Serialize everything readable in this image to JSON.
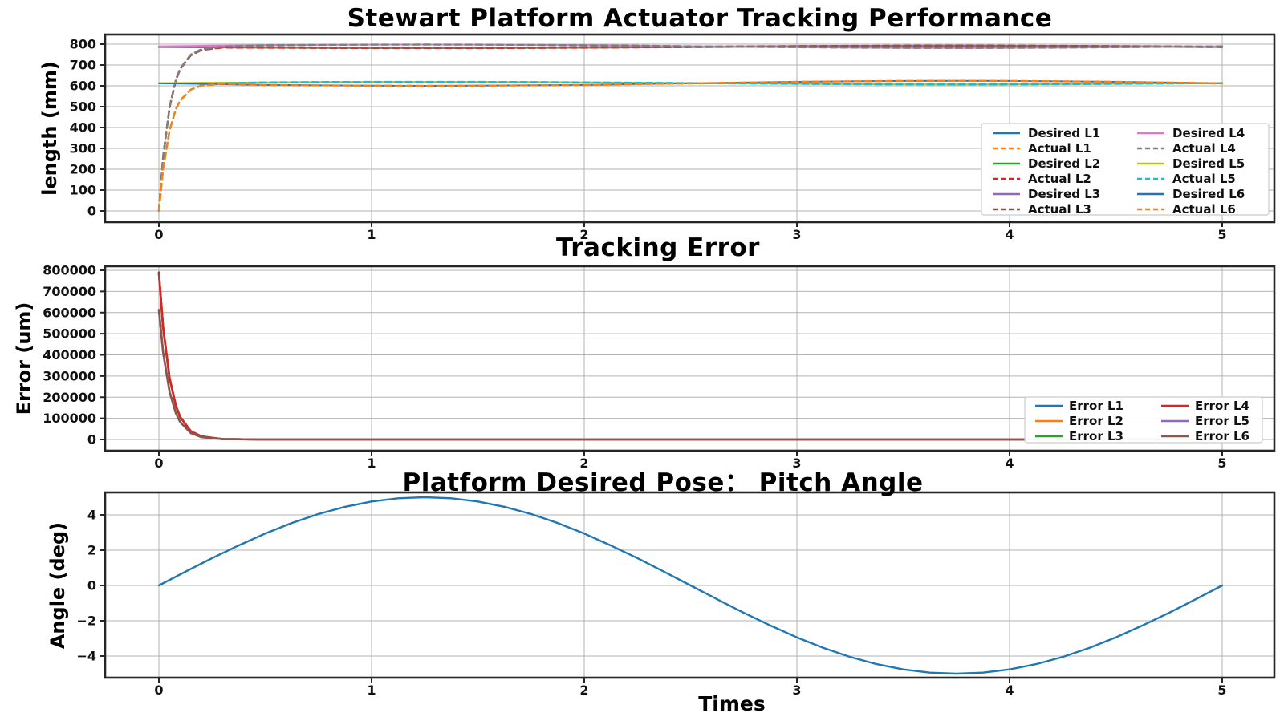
{
  "figure": {
    "background": "#ffffff",
    "grid_color": "#b3b3b3",
    "spine_color": "#262626"
  },
  "chart_data": [
    {
      "type": "line",
      "title": "Stewart Platform Actuator Tracking Performance",
      "xlabel": "",
      "ylabel": "length  (mm)",
      "xlim": [
        -0.253,
        5.245
      ],
      "ylim": [
        -54,
        846
      ],
      "xticks": [
        0,
        1,
        2,
        3,
        4,
        5
      ],
      "yticks": [
        0,
        100,
        200,
        300,
        400,
        500,
        600,
        700,
        800
      ],
      "grid": true,
      "legend_position": "lower right",
      "legend_ncol": 2,
      "grids": {
        "t_desired": [
          0,
          0.25,
          0.5,
          0.75,
          1,
          1.25,
          1.5,
          1.75,
          2,
          2.25,
          2.5,
          2.75,
          3,
          3.25,
          3.5,
          3.75,
          4,
          4.25,
          4.5,
          4.75,
          5
        ],
        "t_actual": [
          0,
          0.02,
          0.05,
          0.08,
          0.1,
          0.15,
          0.2,
          0.3,
          0.5,
          0.75,
          1,
          1.25,
          1.5,
          1.75,
          2,
          2.25,
          2.5,
          2.75,
          3,
          3.25,
          3.5,
          3.75,
          4,
          4.25,
          4.5,
          4.75,
          5
        ]
      },
      "series": [
        {
          "name": "Desired L1",
          "color": "#1f77b4",
          "dashed": false,
          "grid": "t_desired",
          "y": [
            787,
            785.5,
            784.1,
            783,
            782.2,
            782,
            782.2,
            783,
            784.1,
            785.5,
            787,
            788.5,
            789.9,
            791,
            791.8,
            792,
            791.8,
            791,
            789.9,
            788.5,
            787
          ]
        },
        {
          "name": "Actual L1",
          "color": "#ff7f0e",
          "dashed": true,
          "grid": "t_actual",
          "y": [
            0,
            259.7,
            497.4,
            628,
            680.8,
            747.7,
            772.8,
            785,
            784.1,
            783,
            782.2,
            782,
            782.2,
            783,
            784.1,
            785.5,
            787,
            788.5,
            789.9,
            791,
            791.8,
            792,
            791.8,
            791,
            789.9,
            788.5,
            787
          ]
        },
        {
          "name": "Desired L2",
          "color": "#2ca02c",
          "dashed": false,
          "grid": "t_desired",
          "y": [
            786,
            784.5,
            783.1,
            782,
            781.2,
            781,
            781.2,
            782,
            783.1,
            784.5,
            786,
            787.5,
            788.9,
            790,
            790.8,
            791,
            790.8,
            790,
            788.9,
            787.5,
            786
          ]
        },
        {
          "name": "Actual L2",
          "color": "#d62728",
          "dashed": true,
          "grid": "t_actual",
          "y": [
            0,
            259.4,
            496.8,
            627.2,
            679.9,
            746.7,
            771.8,
            784,
            783.1,
            782,
            781.2,
            781,
            781.2,
            782,
            783.1,
            784.5,
            786,
            787.5,
            788.9,
            790,
            790.8,
            791,
            790.8,
            790,
            788.9,
            787.5,
            786
          ]
        },
        {
          "name": "Desired L3",
          "color": "#9467bd",
          "dashed": false,
          "grid": "t_desired",
          "y": [
            788,
            786.5,
            785.1,
            784,
            783.2,
            783,
            783.2,
            784,
            785.1,
            786.5,
            788,
            789.5,
            790.9,
            792,
            792.8,
            793,
            792.8,
            792,
            790.9,
            789.5,
            788
          ]
        },
        {
          "name": "Actual L3",
          "color": "#8c564b",
          "dashed": true,
          "grid": "t_actual",
          "y": [
            0,
            260,
            498,
            628.8,
            681.6,
            748.6,
            773.9,
            786,
            785.1,
            784,
            783.2,
            783,
            783.2,
            784,
            785.1,
            786.5,
            788,
            789.5,
            790.9,
            792,
            792.8,
            793,
            792.8,
            792,
            790.9,
            789.5,
            788
          ]
        },
        {
          "name": "Desired L4",
          "color": "#e377c2",
          "dashed": false,
          "grid": "t_desired",
          "y": [
            790,
            792.5,
            794.7,
            796.5,
            797.6,
            798,
            797.6,
            796.5,
            794.7,
            792.5,
            790,
            787.5,
            785.3,
            783.5,
            782.4,
            782,
            782.4,
            783.5,
            785.3,
            787.5,
            790
          ]
        },
        {
          "name": "Actual L4",
          "color": "#7f7f7f",
          "dashed": true,
          "grid": "t_actual",
          "y": [
            0,
            260.7,
            499.3,
            630.4,
            683.4,
            750.5,
            775.8,
            788,
            794.7,
            796.5,
            797.6,
            798,
            797.6,
            796.5,
            794.7,
            792.5,
            790,
            787.5,
            785.3,
            783.5,
            782.4,
            782,
            782.4,
            783.5,
            785.3,
            787.5,
            790
          ]
        },
        {
          "name": "Desired L5",
          "color": "#bcbd22",
          "dashed": false,
          "grid": "t_desired",
          "y": [
            613,
            614.9,
            616.5,
            617.9,
            618.7,
            619,
            618.7,
            617.9,
            616.5,
            614.9,
            613,
            611.1,
            609.5,
            608.1,
            607.3,
            607,
            607.3,
            608.1,
            609.5,
            611.1,
            613
          ]
        },
        {
          "name": "Actual L5",
          "color": "#17becf",
          "dashed": true,
          "grid": "t_actual",
          "y": [
            0,
            202.3,
            387.4,
            489.2,
            530.2,
            582.4,
            602,
            611.5,
            616.5,
            617.9,
            618.7,
            619,
            618.7,
            617.9,
            616.5,
            614.9,
            613,
            611.1,
            609.5,
            608.1,
            607.3,
            607,
            607.3,
            608.1,
            609.5,
            611.1,
            613
          ]
        },
        {
          "name": "Desired L6",
          "color": "#1f77b4",
          "dashed": false,
          "grid": "t_desired",
          "y": [
            612,
            608.3,
            604.9,
            602.3,
            600.6,
            600,
            600.6,
            602.3,
            604.9,
            608.3,
            612,
            615.7,
            619.1,
            621.7,
            623.4,
            624,
            623.4,
            621.7,
            619.1,
            615.7,
            612
          ]
        },
        {
          "name": "Actual L6",
          "color": "#ff7f0e",
          "dashed": true,
          "grid": "t_actual",
          "y": [
            0,
            202,
            386.8,
            488.4,
            529.4,
            581.4,
            601,
            610.5,
            604.9,
            602.3,
            600.6,
            600,
            600.6,
            602.3,
            604.9,
            608.3,
            612,
            615.7,
            619.1,
            621.7,
            623.4,
            624,
            623.4,
            621.7,
            619.1,
            615.7,
            612
          ]
        }
      ]
    },
    {
      "type": "line",
      "title": "Tracking Error",
      "xlabel": "",
      "ylabel": "Error  (um)",
      "xlim": [
        -0.253,
        5.245
      ],
      "ylim": [
        -53000,
        819000
      ],
      "xticks": [
        0,
        1,
        2,
        3,
        4,
        5
      ],
      "yticks": [
        0,
        100000,
        200000,
        300000,
        400000,
        500000,
        600000,
        700000,
        800000
      ],
      "grid": true,
      "legend_position": "lower right",
      "legend_ncol": 2,
      "grids": {
        "t_error": [
          0,
          0.02,
          0.05,
          0.08,
          0.1,
          0.15,
          0.2,
          0.3,
          0.5,
          1,
          2,
          3,
          4,
          5
        ]
      },
      "series": [
        {
          "name": "Error L1",
          "color": "#1f77b4",
          "dashed": false,
          "grid": "t_error",
          "y": [
            787000,
            527300,
            289600,
            159000,
            106200,
            39200,
            14400,
            1950,
            24,
            0,
            0,
            0,
            0,
            0
          ]
        },
        {
          "name": "Error L2",
          "color": "#ff7f0e",
          "dashed": false,
          "grid": "t_error",
          "y": [
            786000,
            526600,
            289200,
            158800,
            106100,
            39150,
            14380,
            1948,
            24,
            0,
            0,
            0,
            0,
            0
          ]
        },
        {
          "name": "Error L3",
          "color": "#2ca02c",
          "dashed": false,
          "grid": "t_error",
          "y": [
            788000,
            528000,
            290000,
            159200,
            106400,
            39240,
            14420,
            1953,
            24,
            0,
            0,
            0,
            0,
            0
          ]
        },
        {
          "name": "Error L4",
          "color": "#d62728",
          "dashed": false,
          "grid": "t_error",
          "y": [
            790000,
            529300,
            290700,
            159600,
            106700,
            39340,
            14460,
            1958,
            24,
            0,
            0,
            0,
            0,
            0
          ]
        },
        {
          "name": "Error L5",
          "color": "#9467bd",
          "dashed": false,
          "grid": "t_error",
          "y": [
            613000,
            410700,
            225600,
            123800,
            82800,
            30530,
            11220,
            1519,
            18,
            0,
            0,
            0,
            0,
            0
          ]
        },
        {
          "name": "Error L6",
          "color": "#8c564b",
          "dashed": false,
          "grid": "t_error",
          "y": [
            612000,
            410000,
            225200,
            123600,
            82600,
            30480,
            11200,
            1517,
            18,
            0,
            0,
            0,
            0,
            0
          ]
        }
      ]
    },
    {
      "type": "line",
      "title": "Platform Desired Pose： Pitch Angle",
      "xlabel": "Times",
      "ylabel": "Angle  (deg)",
      "xlim": [
        -0.253,
        5.245
      ],
      "ylim": [
        -5.27,
        5.27
      ],
      "xticks": [
        0,
        1,
        2,
        3,
        4,
        5
      ],
      "yticks": [
        -4,
        -2,
        0,
        2,
        4
      ],
      "grid": true,
      "legend_position": null,
      "legend_ncol": 1,
      "grids": {
        "t": [
          0,
          0.125,
          0.25,
          0.375,
          0.5,
          0.625,
          0.75,
          0.875,
          1,
          1.125,
          1.25,
          1.375,
          1.5,
          1.625,
          1.75,
          1.875,
          2,
          2.125,
          2.25,
          2.375,
          2.5,
          2.625,
          2.75,
          2.875,
          3,
          3.125,
          3.25,
          3.375,
          3.5,
          3.625,
          3.75,
          3.875,
          4,
          4.125,
          4.25,
          4.375,
          4.5,
          4.625,
          4.75,
          4.875,
          5
        ]
      },
      "series": [
        {
          "name": "Pitch Angle",
          "color": "#1f77b4",
          "dashed": false,
          "grid": "t",
          "y": [
            0,
            0.78,
            1.55,
            2.27,
            2.94,
            3.54,
            4.05,
            4.46,
            4.76,
            4.94,
            5,
            4.94,
            4.76,
            4.46,
            4.05,
            3.54,
            2.94,
            2.27,
            1.55,
            0.78,
            0,
            -0.78,
            -1.55,
            -2.27,
            -2.94,
            -3.54,
            -4.05,
            -4.46,
            -4.76,
            -4.94,
            -5,
            -4.94,
            -4.76,
            -4.46,
            -4.05,
            -3.54,
            -2.94,
            -2.27,
            -1.55,
            -0.78,
            0
          ]
        }
      ]
    }
  ]
}
